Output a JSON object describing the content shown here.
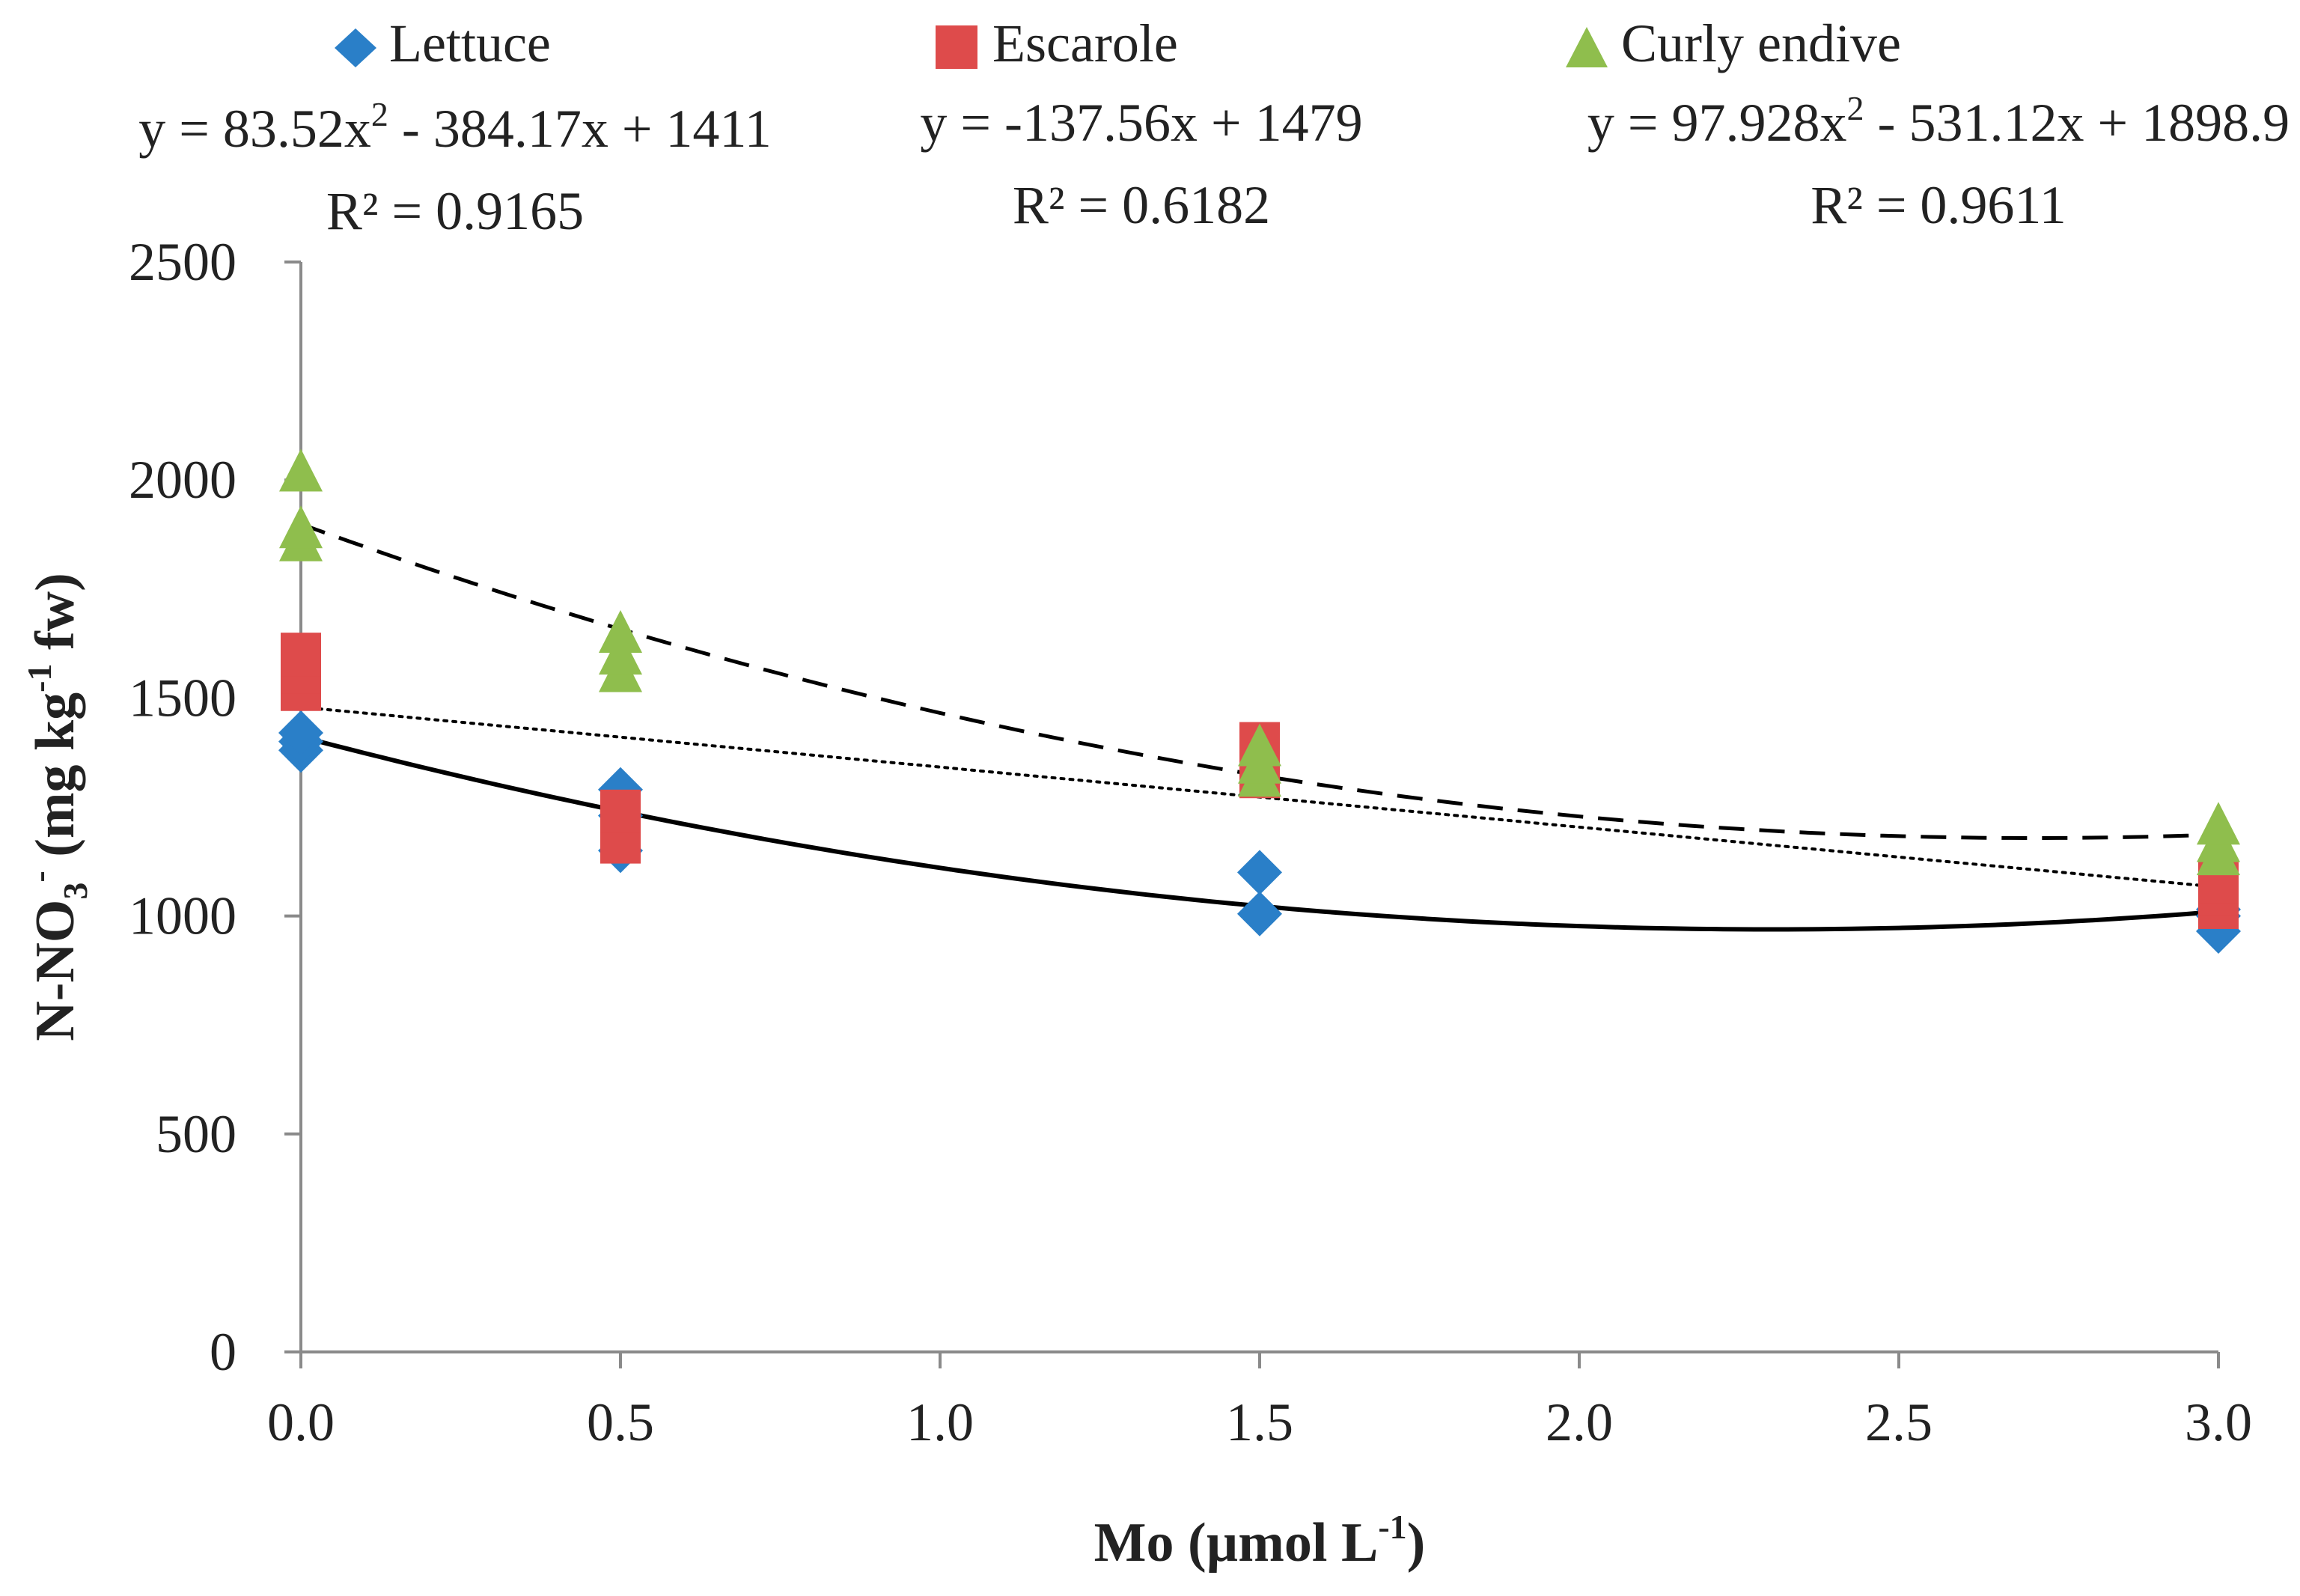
{
  "chart_data": {
    "type": "scatter",
    "xlabel": "Mo (µmol L",
    "xlabel_sup": "-1",
    "xlabel_close": ")",
    "ylabel_main": "N-NO",
    "ylabel_sub": "3",
    "ylabel_sup1": "-",
    "ylabel_mid": " (mg kg",
    "ylabel_sup2": "-1",
    "ylabel_end": " fw)",
    "xlim": [
      0,
      3
    ],
    "ylim": [
      0,
      2500
    ],
    "xticks": [
      0.0,
      0.5,
      1.0,
      1.5,
      2.0,
      2.5,
      3.0
    ],
    "xtick_labels": [
      "0.0",
      "0.5",
      "1.0",
      "1.5",
      "2.0",
      "2.5",
      "3.0"
    ],
    "yticks": [
      0,
      500,
      1000,
      1500,
      2000,
      2500
    ],
    "ytick_labels": [
      "0",
      "500",
      "1000",
      "1500",
      "2000",
      "2500"
    ],
    "grid": false,
    "legend_position": "top",
    "series": [
      {
        "name": "Lettuce",
        "marker": "diamond",
        "color": "#2a7fc8",
        "points": [
          {
            "x": 0.0,
            "y": 1380
          },
          {
            "x": 0.0,
            "y": 1400
          },
          {
            "x": 0.0,
            "y": 1420
          },
          {
            "x": 0.5,
            "y": 1150
          },
          {
            "x": 0.5,
            "y": 1230
          },
          {
            "x": 0.5,
            "y": 1290
          },
          {
            "x": 1.5,
            "y": 1005
          },
          {
            "x": 1.5,
            "y": 1100
          },
          {
            "x": 3.0,
            "y": 965
          },
          {
            "x": 3.0,
            "y": 1000
          },
          {
            "x": 3.0,
            "y": 1015
          }
        ],
        "trend": {
          "type": "poly2",
          "a": 83.52,
          "b": -384.17,
          "c": 1411,
          "line": "solid"
        },
        "equation": {
          "prefix": "y = 83.52x",
          "sup": "2",
          "suffix": " - 384.17x + 1411"
        },
        "r2": "R² = 0.9165"
      },
      {
        "name": "Escarole",
        "marker": "square",
        "color": "#de4b4b",
        "points": [
          {
            "x": 0.0,
            "y": 1520
          },
          {
            "x": 0.0,
            "y": 1560
          },
          {
            "x": 0.0,
            "y": 1600
          },
          {
            "x": 0.5,
            "y": 1170
          },
          {
            "x": 0.5,
            "y": 1200
          },
          {
            "x": 0.5,
            "y": 1240
          },
          {
            "x": 1.5,
            "y": 1320
          },
          {
            "x": 1.5,
            "y": 1360
          },
          {
            "x": 1.5,
            "y": 1395
          },
          {
            "x": 3.0,
            "y": 1020
          },
          {
            "x": 3.0,
            "y": 1050
          },
          {
            "x": 3.0,
            "y": 1080
          }
        ],
        "trend": {
          "type": "linear",
          "a": 0,
          "b": -137.56,
          "c": 1479,
          "line": "dotted"
        },
        "equation": {
          "prefix": "y = -137.56x + 1479",
          "sup": "",
          "suffix": ""
        },
        "r2": "R² = 0.6182"
      },
      {
        "name": "Curly endive",
        "marker": "triangle",
        "color": "#8fbe4d",
        "points": [
          {
            "x": 0.0,
            "y": 1860
          },
          {
            "x": 0.0,
            "y": 1890
          },
          {
            "x": 0.0,
            "y": 2020
          },
          {
            "x": 0.5,
            "y": 1560
          },
          {
            "x": 0.5,
            "y": 1600
          },
          {
            "x": 0.5,
            "y": 1650
          },
          {
            "x": 1.5,
            "y": 1320
          },
          {
            "x": 1.5,
            "y": 1350
          },
          {
            "x": 1.5,
            "y": 1390
          },
          {
            "x": 3.0,
            "y": 1140
          },
          {
            "x": 3.0,
            "y": 1170
          },
          {
            "x": 3.0,
            "y": 1210
          }
        ],
        "trend": {
          "type": "poly2",
          "a": 97.928,
          "b": -531.12,
          "c": 1898.9,
          "line": "dashed"
        },
        "equation": {
          "prefix": "y = 97.928x",
          "sup": "2",
          "suffix": " - 531.12x + 1898.9"
        },
        "r2": "R² = 0.9611"
      }
    ]
  }
}
